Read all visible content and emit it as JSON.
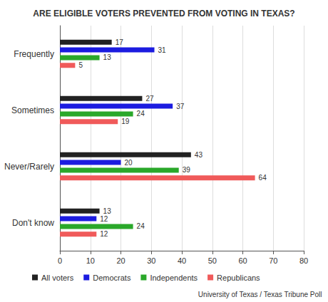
{
  "chart_data": {
    "type": "bar",
    "title": "ARE ELIGIBLE VOTERS PREVENTED FROM VOTING IN TEXAS?",
    "orientation": "horizontal",
    "categories": [
      "Frequently",
      "Sometimes",
      "Never/Rarely",
      "Don't know"
    ],
    "series": [
      {
        "name": "All voters",
        "color": "#222222",
        "values": [
          17,
          27,
          43,
          13
        ]
      },
      {
        "name": "Democrats",
        "color": "#1c1ce0",
        "values": [
          31,
          37,
          20,
          12
        ]
      },
      {
        "name": "Independents",
        "color": "#2aa82a",
        "values": [
          13,
          24,
          39,
          24
        ]
      },
      {
        "name": "Republicans",
        "color": "#f05a5a",
        "values": [
          5,
          19,
          64,
          12
        ]
      }
    ],
    "xlim": [
      0,
      80
    ],
    "xticks": [
      0,
      10,
      20,
      30,
      40,
      50,
      60,
      70,
      80
    ],
    "grid": true,
    "legend": "bottom",
    "data_labels": true,
    "annotations": [
      "University of Texas / Texas Tribune Poll"
    ]
  }
}
